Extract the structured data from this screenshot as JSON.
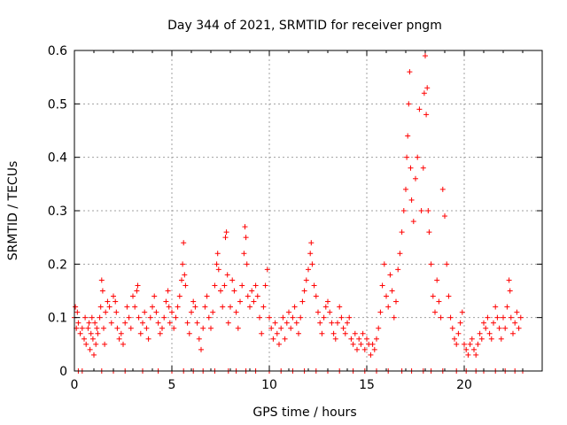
{
  "chart_data": {
    "type": "scatter",
    "title": "Day 344 of 2021, SRMTID for receiver pngm",
    "xlabel": "GPS time / hours",
    "ylabel": "SRMTID / TECUs",
    "xlim": [
      0,
      24
    ],
    "ylim": [
      0,
      0.6
    ],
    "xticks": [
      0,
      5,
      10,
      15,
      20
    ],
    "yticks": [
      0,
      0.1,
      0.2,
      0.3,
      0.4,
      0.5,
      0.6
    ],
    "grid": true,
    "marker": "+",
    "color": "#ff0000",
    "note": "Dense scatter of ~3000 points; values below are approximate representative samples read from the figure (x in hours, y in TECU).",
    "series": [
      {
        "name": "SRMTID",
        "points": [
          [
            0.0,
            0.1
          ],
          [
            0.05,
            0.12
          ],
          [
            0.1,
            0.08
          ],
          [
            0.15,
            0.11
          ],
          [
            0.2,
            0.09
          ],
          [
            0.3,
            0.07
          ],
          [
            0.4,
            0.08
          ],
          [
            0.5,
            0.06
          ],
          [
            0.55,
            0.1
          ],
          [
            0.6,
            0.05
          ],
          [
            0.7,
            0.08
          ],
          [
            0.75,
            0.09
          ],
          [
            0.8,
            0.04
          ],
          [
            0.85,
            0.07
          ],
          [
            0.9,
            0.1
          ],
          [
            0.95,
            0.06
          ],
          [
            1.0,
            0.03
          ],
          [
            1.05,
            0.09
          ],
          [
            1.1,
            0.05
          ],
          [
            1.15,
            0.08
          ],
          [
            1.2,
            0.07
          ],
          [
            1.3,
            0.1
          ],
          [
            1.35,
            0.12
          ],
          [
            1.4,
            0.17
          ],
          [
            1.45,
            0.15
          ],
          [
            1.5,
            0.08
          ],
          [
            1.55,
            0.05
          ],
          [
            1.6,
            0.11
          ],
          [
            1.7,
            0.13
          ],
          [
            1.8,
            0.12
          ],
          [
            1.9,
            0.09
          ],
          [
            2.0,
            0.14
          ],
          [
            2.1,
            0.13
          ],
          [
            2.15,
            0.11
          ],
          [
            2.2,
            0.08
          ],
          [
            2.3,
            0.06
          ],
          [
            2.4,
            0.07
          ],
          [
            2.5,
            0.05
          ],
          [
            2.6,
            0.09
          ],
          [
            2.7,
            0.12
          ],
          [
            2.8,
            0.1
          ],
          [
            2.9,
            0.08
          ],
          [
            3.0,
            0.14
          ],
          [
            3.1,
            0.12
          ],
          [
            3.2,
            0.15
          ],
          [
            3.25,
            0.16
          ],
          [
            3.3,
            0.1
          ],
          [
            3.4,
            0.07
          ],
          [
            3.5,
            0.09
          ],
          [
            3.6,
            0.11
          ],
          [
            3.7,
            0.08
          ],
          [
            3.8,
            0.06
          ],
          [
            3.9,
            0.1
          ],
          [
            4.0,
            0.12
          ],
          [
            4.1,
            0.14
          ],
          [
            4.2,
            0.11
          ],
          [
            4.3,
            0.09
          ],
          [
            4.4,
            0.07
          ],
          [
            4.5,
            0.08
          ],
          [
            4.6,
            0.1
          ],
          [
            4.7,
            0.13
          ],
          [
            4.8,
            0.15
          ],
          [
            4.85,
            0.12
          ],
          [
            4.9,
            0.09
          ],
          [
            5.0,
            0.11
          ],
          [
            5.1,
            0.08
          ],
          [
            5.2,
            0.1
          ],
          [
            5.3,
            0.12
          ],
          [
            5.4,
            0.14
          ],
          [
            5.5,
            0.17
          ],
          [
            5.55,
            0.2
          ],
          [
            5.6,
            0.24
          ],
          [
            5.65,
            0.18
          ],
          [
            5.7,
            0.16
          ],
          [
            5.8,
            0.09
          ],
          [
            5.9,
            0.07
          ],
          [
            6.0,
            0.11
          ],
          [
            6.1,
            0.13
          ],
          [
            6.2,
            0.12
          ],
          [
            6.3,
            0.09
          ],
          [
            6.4,
            0.06
          ],
          [
            6.5,
            0.04
          ],
          [
            6.6,
            0.08
          ],
          [
            6.7,
            0.12
          ],
          [
            6.8,
            0.14
          ],
          [
            6.9,
            0.1
          ],
          [
            7.0,
            0.08
          ],
          [
            7.1,
            0.11
          ],
          [
            7.2,
            0.16
          ],
          [
            7.3,
            0.2
          ],
          [
            7.35,
            0.22
          ],
          [
            7.4,
            0.19
          ],
          [
            7.5,
            0.15
          ],
          [
            7.6,
            0.12
          ],
          [
            7.7,
            0.16
          ],
          [
            7.75,
            0.25
          ],
          [
            7.8,
            0.26
          ],
          [
            7.85,
            0.18
          ],
          [
            7.9,
            0.09
          ],
          [
            8.0,
            0.12
          ],
          [
            8.1,
            0.17
          ],
          [
            8.2,
            0.15
          ],
          [
            8.3,
            0.11
          ],
          [
            8.4,
            0.08
          ],
          [
            8.5,
            0.13
          ],
          [
            8.6,
            0.16
          ],
          [
            8.7,
            0.22
          ],
          [
            8.75,
            0.27
          ],
          [
            8.8,
            0.25
          ],
          [
            8.85,
            0.2
          ],
          [
            8.9,
            0.14
          ],
          [
            9.0,
            0.12
          ],
          [
            9.1,
            0.15
          ],
          [
            9.2,
            0.13
          ],
          [
            9.3,
            0.16
          ],
          [
            9.4,
            0.14
          ],
          [
            9.5,
            0.1
          ],
          [
            9.6,
            0.07
          ],
          [
            9.7,
            0.12
          ],
          [
            9.8,
            0.16
          ],
          [
            9.9,
            0.19
          ],
          [
            10.0,
            0.1
          ],
          [
            10.1,
            0.08
          ],
          [
            10.2,
            0.06
          ],
          [
            10.3,
            0.09
          ],
          [
            10.4,
            0.07
          ],
          [
            10.5,
            0.05
          ],
          [
            10.6,
            0.08
          ],
          [
            10.7,
            0.1
          ],
          [
            10.8,
            0.06
          ],
          [
            10.9,
            0.09
          ],
          [
            11.0,
            0.11
          ],
          [
            11.1,
            0.08
          ],
          [
            11.2,
            0.1
          ],
          [
            11.3,
            0.12
          ],
          [
            11.4,
            0.09
          ],
          [
            11.5,
            0.07
          ],
          [
            11.6,
            0.1
          ],
          [
            11.7,
            0.13
          ],
          [
            11.8,
            0.15
          ],
          [
            11.9,
            0.17
          ],
          [
            12.0,
            0.19
          ],
          [
            12.1,
            0.22
          ],
          [
            12.15,
            0.24
          ],
          [
            12.2,
            0.2
          ],
          [
            12.3,
            0.16
          ],
          [
            12.4,
            0.14
          ],
          [
            12.5,
            0.11
          ],
          [
            12.6,
            0.09
          ],
          [
            12.7,
            0.07
          ],
          [
            12.8,
            0.1
          ],
          [
            12.9,
            0.12
          ],
          [
            13.0,
            0.13
          ],
          [
            13.1,
            0.11
          ],
          [
            13.2,
            0.09
          ],
          [
            13.3,
            0.07
          ],
          [
            13.4,
            0.06
          ],
          [
            13.5,
            0.09
          ],
          [
            13.6,
            0.12
          ],
          [
            13.7,
            0.1
          ],
          [
            13.8,
            0.08
          ],
          [
            13.9,
            0.07
          ],
          [
            14.0,
            0.09
          ],
          [
            14.1,
            0.1
          ],
          [
            14.2,
            0.06
          ],
          [
            14.3,
            0.05
          ],
          [
            14.4,
            0.07
          ],
          [
            14.5,
            0.04
          ],
          [
            14.6,
            0.06
          ],
          [
            14.7,
            0.05
          ],
          [
            14.8,
            0.07
          ],
          [
            14.9,
            0.04
          ],
          [
            15.0,
            0.06
          ],
          [
            15.1,
            0.05
          ],
          [
            15.2,
            0.03
          ],
          [
            15.3,
            0.05
          ],
          [
            15.4,
            0.04
          ],
          [
            15.5,
            0.06
          ],
          [
            15.6,
            0.08
          ],
          [
            15.7,
            0.11
          ],
          [
            15.8,
            0.16
          ],
          [
            15.9,
            0.2
          ],
          [
            16.0,
            0.14
          ],
          [
            16.1,
            0.12
          ],
          [
            16.2,
            0.18
          ],
          [
            16.3,
            0.15
          ],
          [
            16.4,
            0.1
          ],
          [
            16.5,
            0.13
          ],
          [
            16.6,
            0.19
          ],
          [
            16.7,
            0.22
          ],
          [
            16.8,
            0.26
          ],
          [
            16.9,
            0.3
          ],
          [
            17.0,
            0.34
          ],
          [
            17.05,
            0.4
          ],
          [
            17.1,
            0.44
          ],
          [
            17.15,
            0.5
          ],
          [
            17.2,
            0.56
          ],
          [
            17.25,
            0.38
          ],
          [
            17.3,
            0.32
          ],
          [
            17.4,
            0.28
          ],
          [
            17.5,
            0.36
          ],
          [
            17.6,
            0.4
          ],
          [
            17.7,
            0.49
          ],
          [
            17.8,
            0.3
          ],
          [
            17.9,
            0.38
          ],
          [
            17.95,
            0.52
          ],
          [
            18.0,
            0.59
          ],
          [
            18.05,
            0.48
          ],
          [
            18.1,
            0.53
          ],
          [
            18.15,
            0.3
          ],
          [
            18.2,
            0.26
          ],
          [
            18.3,
            0.2
          ],
          [
            18.4,
            0.14
          ],
          [
            18.5,
            0.11
          ],
          [
            18.6,
            0.17
          ],
          [
            18.7,
            0.13
          ],
          [
            18.8,
            0.1
          ],
          [
            18.9,
            0.34
          ],
          [
            19.0,
            0.29
          ],
          [
            19.1,
            0.2
          ],
          [
            19.2,
            0.14
          ],
          [
            19.3,
            0.1
          ],
          [
            19.4,
            0.08
          ],
          [
            19.5,
            0.06
          ],
          [
            19.6,
            0.05
          ],
          [
            19.7,
            0.07
          ],
          [
            19.8,
            0.09
          ],
          [
            19.9,
            0.11
          ],
          [
            20.0,
            0.05
          ],
          [
            20.1,
            0.04
          ],
          [
            20.2,
            0.03
          ],
          [
            20.3,
            0.05
          ],
          [
            20.4,
            0.06
          ],
          [
            20.5,
            0.04
          ],
          [
            20.6,
            0.03
          ],
          [
            20.7,
            0.05
          ],
          [
            20.8,
            0.07
          ],
          [
            20.9,
            0.06
          ],
          [
            21.0,
            0.09
          ],
          [
            21.1,
            0.08
          ],
          [
            21.2,
            0.1
          ],
          [
            21.3,
            0.07
          ],
          [
            21.4,
            0.06
          ],
          [
            21.5,
            0.09
          ],
          [
            21.6,
            0.12
          ],
          [
            21.7,
            0.1
          ],
          [
            21.8,
            0.08
          ],
          [
            21.9,
            0.06
          ],
          [
            22.0,
            0.1
          ],
          [
            22.1,
            0.08
          ],
          [
            22.2,
            0.12
          ],
          [
            22.3,
            0.17
          ],
          [
            22.35,
            0.15
          ],
          [
            22.4,
            0.1
          ],
          [
            22.5,
            0.07
          ],
          [
            22.6,
            0.09
          ],
          [
            22.7,
            0.11
          ],
          [
            22.8,
            0.08
          ],
          [
            22.9,
            0.1
          ]
        ]
      }
    ],
    "baseline_markers_x": [
      0.2,
      0.4,
      1.4,
      2.0,
      2.6,
      3.5,
      4.3,
      5.0,
      5.6,
      6.1,
      6.6,
      7.2,
      7.9,
      8.3,
      8.8,
      9.3,
      10.0,
      10.6,
      11.2,
      11.8,
      12.4,
      13.0,
      13.6,
      14.3,
      14.9,
      15.5,
      16.1,
      16.8,
      17.3,
      17.9,
      18.3,
      18.9,
      19.6,
      20.1,
      20.6,
      21.0,
      21.6,
      22.1,
      22.6,
      23.0
    ]
  }
}
